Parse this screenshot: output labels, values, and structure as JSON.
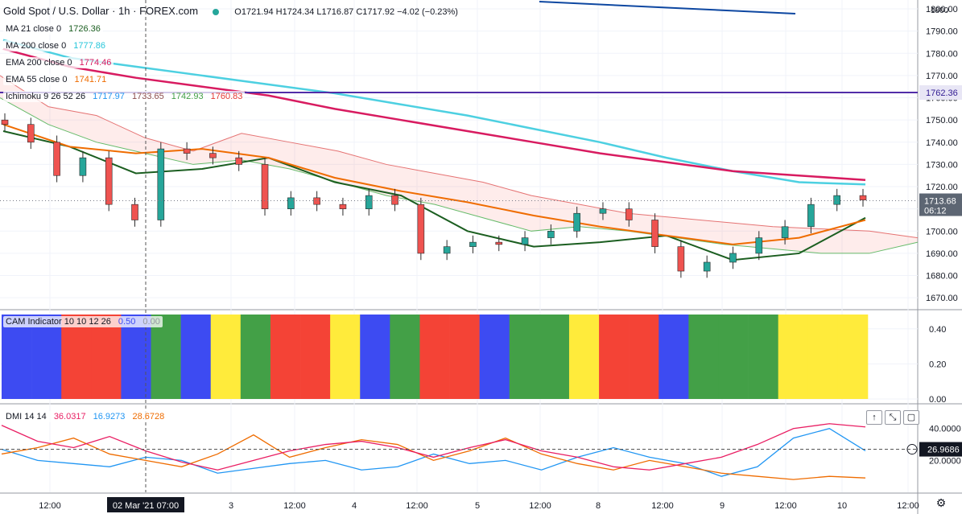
{
  "header": {
    "symbol": "Gold Spot / U.S. Dollar · 1h · FOREX.com",
    "ohlc": "O1721.94 H1724.34 L1716.87 C1717.92 −4.02 (−0.23%)",
    "status_color": "#26a69a"
  },
  "legends": {
    "ma21": {
      "label": "MA 21 close 0",
      "value": "1726.36",
      "color": "#1b5e20"
    },
    "ma200": {
      "label": "MA 200 close 0",
      "value": "1777.86",
      "color": "#4dd0e1"
    },
    "ema200": {
      "label": "EMA 200 close 0",
      "value": "1774.46",
      "color": "#d81b60"
    },
    "ema55": {
      "label": "EMA 55 close 0",
      "value": "1741.71",
      "color": "#ef6c00"
    },
    "ichimoku": {
      "label": "Ichimoku 9 26 52 26",
      "v1": "1717.97",
      "v2": "1733.65",
      "v3": "1742.93",
      "v4": "1760.83"
    },
    "cam": {
      "label": "CAM Indicator 10 10 12 26",
      "v1": "0.50",
      "v2": "0.00"
    },
    "dmi": {
      "label": "DMI 14 14",
      "v1": "36.0317",
      "v2": "16.9273",
      "v3": "28.6728"
    }
  },
  "price_scale": {
    "ticks": [
      "1800.00",
      "1790.00",
      "1780.00",
      "1770.00",
      "1760.00",
      "1750.00",
      "1740.00",
      "1730.00",
      "1720.00",
      "1710.00",
      "1700.00",
      "1690.00",
      "1680.00",
      "1670.00"
    ],
    "top_label": "1800",
    "hline_label": "1762.36",
    "hline_color": "#512da8",
    "last_price": "1713.68",
    "countdown": "06:12",
    "last_color": "#5d6673"
  },
  "cam_scale": {
    "ticks": [
      "0.40",
      "0.20",
      "0.00"
    ]
  },
  "dmi_scale": {
    "ticks": [
      "40.0000",
      "20.0000"
    ],
    "current": "26.9686"
  },
  "time_axis": {
    "labels": [
      "12:00",
      "3",
      "12:00",
      "4",
      "12:00",
      "5",
      "12:00",
      "8",
      "12:00",
      "9",
      "12:00",
      "10",
      "12:00"
    ],
    "crosshair": "02 Mar '21  07:00"
  },
  "chart_data": [
    {
      "type": "candlestick",
      "title": "Gold Spot / U.S. Dollar · 1h · FOREX.com",
      "ylim": [
        1665,
        1804
      ],
      "hline": 1762.36,
      "x": [
        "Mar 1 12:00",
        "Mar 2",
        "Mar 2 12:00",
        "Mar 3",
        "Mar 3 12:00",
        "Mar 4",
        "Mar 4 12:00",
        "Mar 5",
        "Mar 5 12:00",
        "Mar 8",
        "Mar 8 12:00",
        "Mar 9",
        "Mar 9 12:00",
        "Mar 10"
      ],
      "series": [
        {
          "name": "MA 21 close 0",
          "color": "#1b5e20",
          "values": [
            1745,
            1738,
            1726,
            1728,
            1733,
            1722,
            1716,
            1700,
            1693,
            1695,
            1698,
            1687,
            1690,
            1706
          ]
        },
        {
          "name": "MA 200 close 0",
          "color": "#4dd0e1",
          "values": [
            1786,
            1778,
            1774,
            1770,
            1766,
            1762,
            1757,
            1752,
            1746,
            1740,
            1733,
            1727,
            1722,
            1721
          ]
        },
        {
          "name": "EMA 200 close 0",
          "color": "#d81b60",
          "values": [
            1782,
            1774,
            1769,
            1765,
            1761,
            1755,
            1750,
            1745,
            1740,
            1735,
            1731,
            1727,
            1725,
            1723
          ]
        },
        {
          "name": "EMA 55 close 0",
          "color": "#ef6c00",
          "values": [
            1748,
            1738,
            1735,
            1737,
            1733,
            1724,
            1718,
            1713,
            1707,
            1702,
            1698,
            1694,
            1697,
            1705
          ]
        }
      ],
      "closes": [
        1748,
        1740,
        1725,
        1733,
        1712,
        1705,
        1737,
        1735,
        1733,
        1730,
        1710,
        1715,
        1712,
        1710,
        1716,
        1712,
        1690,
        1693,
        1695,
        1694,
        1697,
        1700,
        1708,
        1710,
        1705,
        1693,
        1682,
        1686,
        1690,
        1697,
        1702,
        1712,
        1716,
        1714
      ]
    },
    {
      "type": "bar",
      "title": "CAM Indicator 10 10 12 26",
      "ylim": [
        0,
        0.5
      ],
      "colors": [
        "blue",
        "blue",
        "red",
        "red",
        "blue",
        "green",
        "blue",
        "yellow",
        "green",
        "red",
        "red",
        "yellow",
        "blue",
        "green",
        "red",
        "red",
        "blue",
        "green",
        "green",
        "yellow",
        "red",
        "red",
        "blue",
        "green",
        "green",
        "green",
        "yellow",
        "yellow",
        "yellow"
      ],
      "palette": {
        "blue": "#3d4bf2",
        "red": "#f44336",
        "green": "#43a047",
        "yellow": "#ffeb3b"
      },
      "value": 0.5
    },
    {
      "type": "line",
      "title": "DMI 14 14",
      "ylim": [
        0,
        55
      ],
      "series": [
        {
          "name": "DMI 14 14 +DI",
          "color": "#2196f3",
          "values": [
            27,
            20,
            18,
            16,
            22,
            20,
            12,
            15,
            18,
            20,
            14,
            16,
            24,
            18,
            20,
            14,
            22,
            28,
            22,
            18,
            10,
            16,
            34,
            40,
            26
          ]
        },
        {
          "name": "DMI 14 14 -DI",
          "color": "#ef6c00",
          "values": [
            24,
            28,
            34,
            24,
            20,
            16,
            24,
            36,
            22,
            28,
            33,
            30,
            20,
            26,
            34,
            24,
            18,
            14,
            20,
            16,
            12,
            10,
            8,
            10,
            9
          ]
        },
        {
          "name": "DMI 14 14 ADX",
          "color": "#e91e63",
          "values": [
            42,
            32,
            28,
            35,
            26,
            19,
            14,
            20,
            26,
            30,
            32,
            28,
            22,
            28,
            33,
            26,
            22,
            16,
            14,
            18,
            22,
            30,
            40,
            43,
            41
          ]
        }
      ]
    }
  ]
}
